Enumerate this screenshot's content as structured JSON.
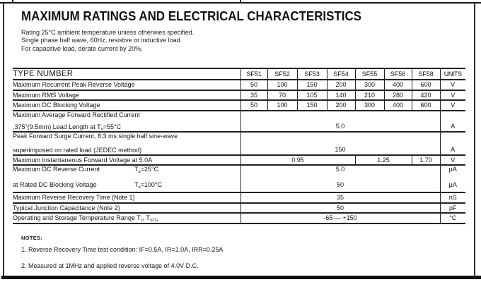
{
  "colors": {
    "ink": "#1a1a1a",
    "border": "#222222",
    "background": "#ffffff"
  },
  "header": {
    "title": "MAXIMUM RATINGS AND ELECTRICAL CHARACTERISTICS",
    "conditions": [
      "Rating 25°C ambient temperature uniess otherwies specified.",
      "Single phase half wave, 60Hz, resistive or inductive load.",
      "For capacitive load, derate current by 20%."
    ]
  },
  "table": {
    "type_number_label": "TYPE NUMBER",
    "columns": [
      "SF51",
      "SF52",
      "SF53",
      "SF54",
      "SF55",
      "SF56",
      "SF58"
    ],
    "units_label": "UNITS",
    "rows": {
      "recurrent_peak": {
        "label": "Maximum Recurrent Peak Reverse Voltage",
        "values": [
          "50",
          "100",
          "150",
          "200",
          "300",
          "400",
          "600"
        ],
        "unit": "V"
      },
      "rms_voltage": {
        "label": "Maximum RMS Voltage",
        "values": [
          "35",
          "70",
          "105",
          "140",
          "210",
          "280",
          "420"
        ],
        "unit": "V"
      },
      "dc_blocking": {
        "label": "Maximum DC Blocking Voltage",
        "values": [
          "50",
          "100",
          "150",
          "200",
          "300",
          "400",
          "600"
        ],
        "unit": "V"
      },
      "avg_forward": {
        "label_line1": "Maximum Average Forward Rectified Current",
        "label_line2": ".375\"(9.5mm) Lead Length at T~a~=55°C",
        "value": "5.0",
        "unit": "A"
      },
      "surge_current": {
        "label_line1": "Peak Forward Surge Current, 8.3 ms single half sine-wave",
        "label_line2": "superimposed on rated load (JEDEC method)",
        "value": "150",
        "unit": "A"
      },
      "forward_voltage": {
        "label": "Maximum Instantaneous Forward Voltage at 5.0A",
        "values": [
          "0.95",
          "1.25",
          "1.70"
        ],
        "unit": "V"
      },
      "reverse_current": {
        "label_line1": "Maximum DC Reverse Current",
        "cond1": "T~a~=25°C",
        "label_line2": "at Rated DC Blocking Voltage",
        "cond2": "T~a~=100°C",
        "value1": "5.0",
        "value2": "50",
        "unit1": "µA",
        "unit2": "µA"
      },
      "reverse_recovery": {
        "label": "Maximum Reverse Recovery Time (Note 1)",
        "value": "35",
        "unit": "nS"
      },
      "junction_capacitance": {
        "label": "Typical Junction Capacitance (Note 2)",
        "value": "50",
        "unit": "pF"
      },
      "temp_range": {
        "label": "Operating and Storage Temperature Range T~J~, T~STG~",
        "value": "-65 — +150",
        "unit": "°C"
      }
    }
  },
  "notes": {
    "heading": "NOTES:",
    "items": [
      "1. Reverse Recovery Time test condition: IF=0.5A, IR=1.0A, IRR=0.25A",
      "2. Measured at 1MHz and applied reverse voltage of 4.0V D.C."
    ]
  }
}
